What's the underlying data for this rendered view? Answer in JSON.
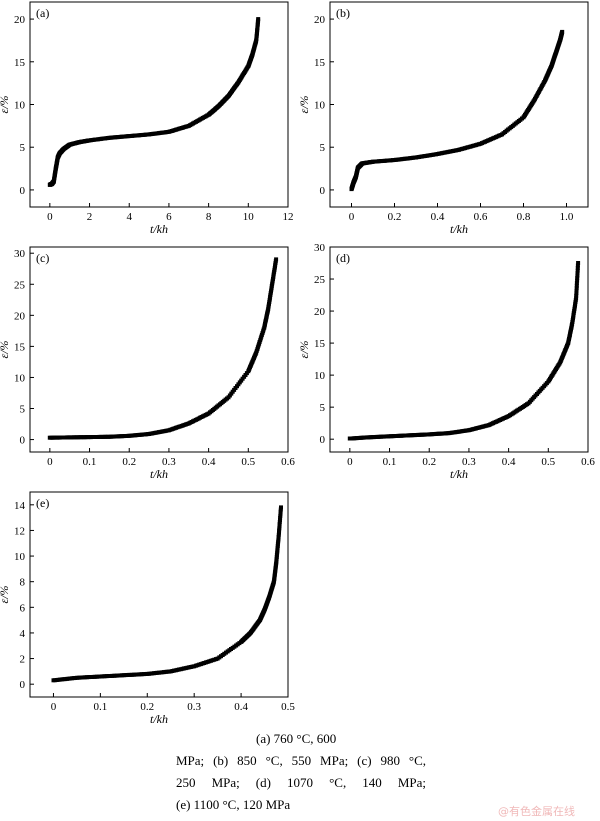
{
  "chart_data": [
    {
      "id": "a",
      "type": "scatter",
      "panel_label": "(a)",
      "xlabel": "t/kh",
      "ylabel": "ε/%",
      "xlim": [
        -1,
        12
      ],
      "ylim": [
        -2,
        22
      ],
      "xticks": [
        0,
        2,
        4,
        6,
        8,
        10,
        12
      ],
      "xtick_labels": [
        "0",
        "2",
        "4",
        "6",
        "8",
        "10",
        "12"
      ],
      "yticks": [
        0,
        5,
        10,
        15,
        20
      ],
      "ytick_labels": [
        "0",
        "5",
        "10",
        "15",
        "20"
      ],
      "grid": false,
      "marker": "square",
      "x": [
        0.0,
        0.1,
        0.2,
        0.3,
        0.4,
        0.5,
        0.7,
        1.0,
        1.5,
        2.0,
        3.0,
        4.0,
        5.0,
        6.0,
        7.0,
        8.0,
        8.5,
        9.0,
        9.5,
        10.0,
        10.2,
        10.4,
        10.5
      ],
      "y": [
        0.6,
        0.7,
        1.0,
        2.5,
        3.8,
        4.3,
        4.8,
        5.3,
        5.6,
        5.8,
        6.1,
        6.3,
        6.5,
        6.8,
        7.5,
        8.8,
        9.8,
        11.0,
        12.6,
        14.5,
        15.8,
        17.5,
        20.0
      ]
    },
    {
      "id": "b",
      "type": "scatter",
      "panel_label": "(b)",
      "xlabel": "t/kh",
      "ylabel": "ε/%",
      "xlim": [
        -0.1,
        1.1
      ],
      "ylim": [
        -2,
        22
      ],
      "xticks": [
        0,
        0.2,
        0.4,
        0.6,
        0.8,
        1.0
      ],
      "xtick_labels": [
        "0",
        "0.2",
        "0.4",
        "0.6",
        "0.8",
        "1.0"
      ],
      "yticks": [
        0,
        5,
        10,
        15,
        20
      ],
      "ytick_labels": [
        "0",
        "5",
        "10",
        "15",
        "20"
      ],
      "grid": false,
      "marker": "square",
      "x": [
        0.0,
        0.01,
        0.02,
        0.03,
        0.05,
        0.1,
        0.2,
        0.3,
        0.4,
        0.5,
        0.6,
        0.7,
        0.8,
        0.85,
        0.9,
        0.93,
        0.95,
        0.97,
        0.98
      ],
      "y": [
        0.1,
        0.9,
        1.5,
        2.6,
        3.1,
        3.3,
        3.5,
        3.8,
        4.2,
        4.7,
        5.4,
        6.5,
        8.5,
        10.5,
        12.8,
        14.5,
        16.0,
        17.5,
        18.5
      ]
    },
    {
      "id": "c",
      "type": "scatter",
      "panel_label": "(c)",
      "xlabel": "t/kh",
      "ylabel": "ε/%",
      "xlim": [
        -0.05,
        0.6
      ],
      "ylim": [
        -2,
        31
      ],
      "xticks": [
        0,
        0.1,
        0.2,
        0.3,
        0.4,
        0.5,
        0.6
      ],
      "xtick_labels": [
        "0",
        "0.1",
        "0.2",
        "0.3",
        "0.4",
        "0.5",
        "0.6"
      ],
      "yticks": [
        0,
        5,
        10,
        15,
        20,
        25,
        30
      ],
      "ytick_labels": [
        "0",
        "5",
        "10",
        "15",
        "20",
        "25",
        "30"
      ],
      "grid": false,
      "marker": "square",
      "x": [
        0.0,
        0.05,
        0.1,
        0.15,
        0.2,
        0.25,
        0.3,
        0.35,
        0.4,
        0.45,
        0.5,
        0.52,
        0.54,
        0.55,
        0.56,
        0.57
      ],
      "y": [
        0.3,
        0.35,
        0.4,
        0.45,
        0.6,
        0.9,
        1.5,
        2.6,
        4.2,
        6.8,
        11.0,
        14.0,
        18.0,
        21.0,
        25.0,
        29.0
      ]
    },
    {
      "id": "d",
      "type": "scatter",
      "panel_label": "(d)",
      "xlabel": "t/kh",
      "ylabel": "ε/%",
      "xlim": [
        -0.05,
        0.6
      ],
      "ylim": [
        -2,
        30
      ],
      "xticks": [
        0,
        0.1,
        0.2,
        0.3,
        0.4,
        0.5,
        0.6
      ],
      "xtick_labels": [
        "0",
        "0.1",
        "0.2",
        "0.3",
        "0.4",
        "0.5",
        "0.6"
      ],
      "yticks": [
        0,
        5,
        10,
        15,
        20,
        25,
        30
      ],
      "ytick_labels": [
        "0",
        "5",
        "10",
        "15",
        "20",
        "25",
        "30"
      ],
      "grid": false,
      "marker": "square",
      "x": [
        0.0,
        0.05,
        0.1,
        0.15,
        0.2,
        0.25,
        0.3,
        0.35,
        0.4,
        0.45,
        0.5,
        0.53,
        0.55,
        0.56,
        0.57,
        0.575
      ],
      "y": [
        0.1,
        0.3,
        0.45,
        0.6,
        0.75,
        0.95,
        1.4,
        2.2,
        3.6,
        5.6,
        9.0,
        12.0,
        15.0,
        18.0,
        22.0,
        27.5
      ]
    },
    {
      "id": "e",
      "type": "scatter",
      "panel_label": "(e)",
      "xlabel": "t/kh",
      "ylabel": "ε/%",
      "xlim": [
        -0.05,
        0.5
      ],
      "ylim": [
        -1,
        15
      ],
      "xticks": [
        0,
        0.1,
        0.2,
        0.3,
        0.4,
        0.5
      ],
      "xtick_labels": [
        "0",
        "0.1",
        "0.2",
        "0.3",
        "0.4",
        "0.5"
      ],
      "yticks": [
        0,
        2,
        4,
        6,
        8,
        10,
        12,
        14
      ],
      "ytick_labels": [
        "0",
        "2",
        "4",
        "6",
        "8",
        "10",
        "12",
        "14"
      ],
      "grid": false,
      "marker": "square",
      "x": [
        0.0,
        0.05,
        0.1,
        0.15,
        0.2,
        0.25,
        0.3,
        0.35,
        0.4,
        0.42,
        0.44,
        0.45,
        0.46,
        0.47,
        0.475,
        0.48,
        0.485
      ],
      "y": [
        0.3,
        0.5,
        0.6,
        0.7,
        0.8,
        1.0,
        1.4,
        2.0,
        3.3,
        4.0,
        5.0,
        5.8,
        6.8,
        8.0,
        9.5,
        11.5,
        13.8
      ]
    }
  ],
  "caption": {
    "line1": "(a) 760 °C, 600",
    "line2": "MPa; (b) 850 °C, 550 MPa; (c) 980 °C,",
    "line3": "250  MPa;  (d)  1070  °C,  140  MPa;",
    "line4": "(e) 1100 °C, 120 MPa"
  },
  "watermark": "@有色金属在线"
}
